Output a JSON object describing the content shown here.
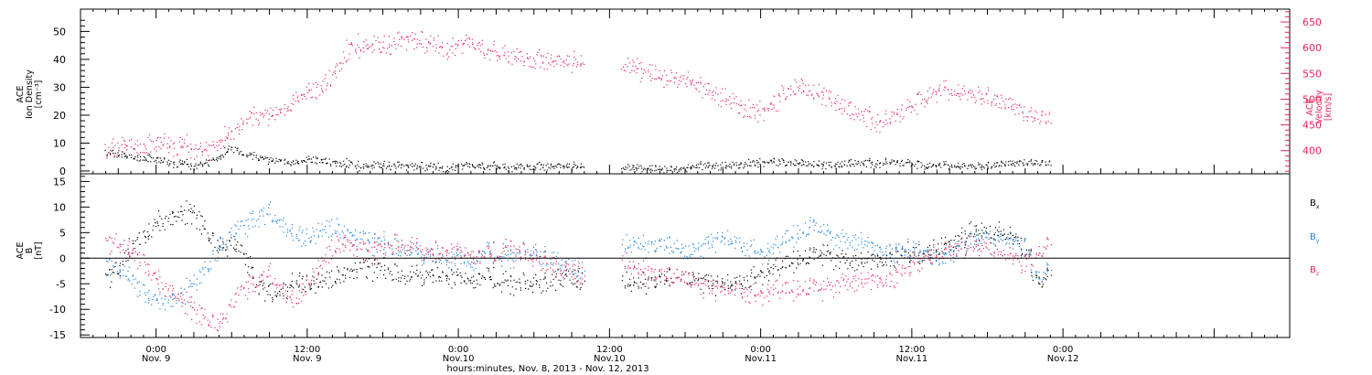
{
  "chart_data": [
    {
      "type": "scatter",
      "panel": "top",
      "ylabel_left": [
        "ACE",
        "Ion Density",
        "[cm⁻³]"
      ],
      "ylabel_right": [
        "ACE",
        "Velocity",
        "[km/s]"
      ],
      "colors": {
        "density": "#000000",
        "velocity": "#e8245c"
      },
      "ylim_left": [
        -1,
        58
      ],
      "ylim_right": [
        355,
        675
      ],
      "yticks_left": [
        0,
        10,
        20,
        30,
        40,
        50
      ],
      "yticks_right": [
        400,
        450,
        500,
        550,
        600,
        650
      ],
      "series": [
        {
          "axis": "left",
          "color": "#000000",
          "x": [
            -4,
            -3,
            -2,
            -1,
            0,
            1,
            2,
            3,
            4,
            5,
            6,
            7,
            8,
            9,
            10,
            11,
            12,
            13,
            14,
            15,
            16,
            17,
            18,
            19,
            20,
            21,
            22,
            23,
            24,
            25,
            26,
            27,
            28,
            29,
            30,
            31,
            32,
            33,
            34,
            35,
            36,
            37,
            38,
            39,
            40,
            41,
            42,
            43,
            44,
            45,
            46,
            47,
            48,
            49,
            50,
            51,
            52,
            53,
            54,
            55,
            56,
            57,
            58,
            59,
            60,
            61,
            62,
            63,
            64,
            65,
            66,
            67,
            68,
            69,
            70
          ],
          "values": [
            7,
            6,
            5,
            5,
            4,
            3,
            3,
            2,
            3,
            5,
            9,
            6,
            5,
            4,
            4,
            3,
            4,
            4,
            3,
            3,
            2,
            2,
            2,
            2,
            2,
            2,
            2,
            1,
            2,
            2,
            2,
            2,
            1,
            2,
            2,
            2,
            2,
            2,
            null,
            null,
            null,
            1,
            1,
            1,
            1,
            1,
            1,
            2,
            2,
            2,
            2,
            3,
            3,
            4,
            3,
            3,
            3,
            2,
            2,
            3,
            3,
            3,
            3,
            3,
            3,
            2,
            2,
            2,
            2,
            2,
            2,
            3,
            3,
            3,
            3
          ]
        },
        {
          "axis": "right",
          "color": "#e8245c",
          "x": [
            -4,
            -3,
            -2,
            -1,
            0,
            1,
            2,
            3,
            4,
            5,
            6,
            7,
            8,
            9,
            10,
            11,
            12,
            13,
            14,
            15,
            16,
            17,
            18,
            19,
            20,
            21,
            22,
            23,
            24,
            25,
            26,
            27,
            28,
            29,
            30,
            31,
            32,
            33,
            34,
            35,
            36,
            37,
            38,
            39,
            40,
            41,
            42,
            43,
            44,
            45,
            46,
            47,
            48,
            49,
            50,
            51,
            52,
            53,
            54,
            55,
            56,
            57,
            58,
            59,
            60,
            61,
            62,
            63,
            64,
            65,
            66,
            67,
            68,
            69,
            70
          ],
          "values": [
            405,
            408,
            410,
            410,
            412,
            412,
            412,
            405,
            400,
            415,
            440,
            460,
            465,
            470,
            480,
            500,
            510,
            520,
            545,
            590,
            605,
            605,
            600,
            610,
            620,
            615,
            610,
            600,
            605,
            610,
            600,
            590,
            585,
            585,
            580,
            580,
            575,
            575,
            null,
            null,
            null,
            560,
            560,
            555,
            545,
            545,
            540,
            525,
            515,
            505,
            490,
            480,
            475,
            495,
            515,
            525,
            520,
            505,
            490,
            480,
            470,
            460,
            455,
            470,
            490,
            505,
            515,
            515,
            515,
            510,
            505,
            500,
            490,
            470,
            465
          ]
        }
      ]
    },
    {
      "type": "scatter",
      "panel": "bottom",
      "ylabel": [
        "ACE",
        "B",
        "[nT]"
      ],
      "ylim": [
        -15.5,
        16.5
      ],
      "yticks": [
        -15,
        -10,
        -5,
        0,
        5,
        10,
        15
      ],
      "legend_location": "right",
      "series": [
        {
          "name": "Bx",
          "color": "#000000",
          "x": [
            -4,
            -3,
            -2,
            -1,
            0,
            1,
            2,
            3,
            4,
            5,
            6,
            7,
            8,
            9,
            10,
            11,
            12,
            13,
            14,
            15,
            16,
            17,
            18,
            19,
            20,
            21,
            22,
            23,
            24,
            25,
            26,
            27,
            28,
            29,
            30,
            31,
            32,
            33,
            34,
            35,
            36,
            37,
            38,
            39,
            40,
            41,
            42,
            43,
            44,
            45,
            46,
            47,
            48,
            49,
            50,
            51,
            52,
            53,
            54,
            55,
            56,
            57,
            58,
            59,
            60,
            61,
            62,
            63,
            64,
            65,
            66,
            67,
            68,
            69,
            70
          ],
          "values": [
            -4,
            -2,
            2,
            4,
            7,
            8,
            9,
            9,
            5,
            2,
            3,
            0,
            -5,
            -7,
            -6,
            -4,
            -5,
            -5,
            -4,
            -3,
            -2,
            -2,
            -2,
            -3,
            -3,
            -3,
            -3,
            -3,
            -4,
            -4,
            -4,
            -4,
            -5,
            -5,
            -5,
            -5,
            -4,
            -4,
            null,
            null,
            null,
            -5,
            -5,
            -5,
            -4,
            -4,
            -4,
            -4,
            -5,
            -5,
            -5,
            -4,
            -3,
            -2,
            -1,
            0,
            0,
            1,
            0,
            -1,
            -1,
            0,
            0,
            1,
            1,
            1,
            2,
            3,
            4,
            5,
            5,
            5,
            4,
            2,
            -4
          ]
        },
        {
          "name": "By",
          "color": "#1a82e2",
          "x": [
            -4,
            -3,
            -2,
            -1,
            0,
            1,
            2,
            3,
            4,
            5,
            6,
            7,
            8,
            9,
            10,
            11,
            12,
            13,
            14,
            15,
            16,
            17,
            18,
            19,
            20,
            21,
            22,
            23,
            24,
            25,
            26,
            27,
            28,
            29,
            30,
            31,
            32,
            33,
            34,
            35,
            36,
            37,
            38,
            39,
            40,
            41,
            42,
            43,
            44,
            45,
            46,
            47,
            48,
            49,
            50,
            51,
            52,
            53,
            54,
            55,
            56,
            57,
            58,
            59,
            60,
            61,
            62,
            63,
            64,
            65,
            66,
            67,
            68,
            69,
            70
          ],
          "values": [
            -1,
            -2,
            -4,
            -7,
            -8,
            -8,
            -7,
            -5,
            -2,
            2,
            5,
            6,
            8,
            9,
            7,
            5,
            4,
            5,
            6,
            5,
            4,
            3,
            3,
            2,
            2,
            1,
            1,
            0,
            0,
            -1,
            1,
            1,
            0,
            1,
            1,
            0,
            -1,
            -2,
            null,
            null,
            null,
            2,
            3,
            2,
            3,
            2,
            1,
            2,
            3,
            4,
            3,
            2,
            1,
            2,
            4,
            5,
            6,
            5,
            4,
            3,
            3,
            2,
            2,
            1,
            2,
            1,
            0,
            1,
            2,
            3,
            4,
            4,
            3,
            2,
            -3
          ]
        },
        {
          "name": "Bz",
          "color": "#e8245c",
          "x": [
            -4,
            -3,
            -2,
            -1,
            0,
            1,
            2,
            3,
            4,
            5,
            6,
            7,
            8,
            9,
            10,
            11,
            12,
            13,
            14,
            15,
            16,
            17,
            18,
            19,
            20,
            21,
            22,
            23,
            24,
            25,
            26,
            27,
            28,
            29,
            30,
            31,
            32,
            33,
            34,
            35,
            36,
            37,
            38,
            39,
            40,
            41,
            42,
            43,
            44,
            45,
            46,
            47,
            48,
            49,
            50,
            51,
            52,
            53,
            54,
            55,
            56,
            57,
            58,
            59,
            60,
            61,
            62,
            63,
            64,
            65,
            66,
            67,
            68,
            69,
            70
          ],
          "values": [
            3,
            3,
            1,
            -1,
            -4,
            -6,
            -8,
            -10,
            -12,
            -13,
            -9,
            -6,
            -5,
            -3,
            -6,
            -8,
            -5,
            -2,
            2,
            3,
            2,
            1,
            2,
            3,
            3,
            2,
            1,
            2,
            1,
            1,
            0,
            1,
            2,
            1,
            0,
            -1,
            -2,
            -3,
            null,
            null,
            null,
            -1,
            -2,
            -3,
            -3,
            -4,
            -4,
            -5,
            -6,
            -6,
            -6,
            -7,
            -7,
            -6,
            -6,
            -6,
            -6,
            -6,
            -5,
            -5,
            -5,
            -4,
            -4,
            -3,
            -1,
            0,
            1,
            2,
            2,
            2,
            2,
            1,
            0,
            -1,
            2
          ]
        }
      ]
    }
  ],
  "legend": {
    "bx": {
      "label": "B",
      "sub": "x",
      "color": "#000000"
    },
    "by": {
      "label": "B",
      "sub": "y",
      "color": "#1a82e2"
    },
    "bz": {
      "label": "B",
      "sub": "z",
      "color": "#e8245c"
    }
  },
  "x_axis": {
    "range_hours": [
      -6,
      90
    ],
    "ticks": [
      {
        "h": 0,
        "time": "0:00",
        "date": "Nov. 9"
      },
      {
        "h": 12,
        "time": "12:00",
        "date": "Nov. 9"
      },
      {
        "h": 24,
        "time": "0:00",
        "date": "Nov.10"
      },
      {
        "h": 36,
        "time": "12:00",
        "date": "Nov.10"
      },
      {
        "h": 48,
        "time": "0:00",
        "date": "Nov.11"
      },
      {
        "h": 60,
        "time": "12:00",
        "date": "Nov.11"
      },
      {
        "h": 72,
        "time": "0:00",
        "date": "Nov.12"
      }
    ],
    "title": "hours:minutes, Nov.  8, 2013 - Nov. 12, 2013"
  }
}
